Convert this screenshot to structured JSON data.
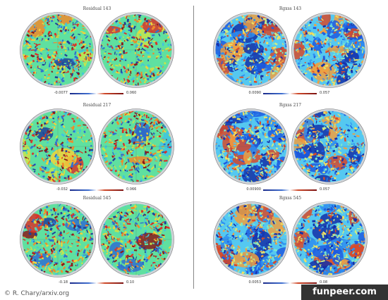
{
  "panels": [
    {
      "title": "Residual 143",
      "cb_min": "-0.0077",
      "cb_max": "0.060",
      "palette": "residual",
      "seed": 11
    },
    {
      "title": "Rgxss 143",
      "cb_min": "0.0090",
      "cb_max": "0.057",
      "palette": "rgxss",
      "seed": 23
    },
    {
      "title": "Residual 217",
      "cb_min": "-0.032",
      "cb_max": "0.066",
      "palette": "residual",
      "seed": 37
    },
    {
      "title": "Rgxss 217",
      "cb_min": "0.00900",
      "cb_max": "0.057",
      "palette": "rgxss",
      "seed": 41
    },
    {
      "title": "Residual 545",
      "cb_min": "-0.18",
      "cb_max": "0.10",
      "palette": "residual",
      "seed": 53
    },
    {
      "title": "Rgxss 545",
      "cb_min": "0.0053",
      "cb_max": "0.08",
      "palette": "rgxss",
      "seed": 67
    }
  ],
  "colors": {
    "residual": [
      "#1f3f9a",
      "#2f6fd0",
      "#41c3e0",
      "#5fe0a0",
      "#c8e34a",
      "#f2d23a",
      "#f08a2a",
      "#d8322a",
      "#8a1a1a",
      "#cfd3d8"
    ],
    "rgxss": [
      "#1430a8",
      "#1e5ce0",
      "#2f8ef0",
      "#55c8f0",
      "#7ee8c8",
      "#c8ec8a",
      "#f0e060",
      "#f0a040",
      "#d84a2a",
      "#cfd3d8"
    ]
  },
  "credit": "© R. Chary/arxiv.org",
  "brand": "funpeer.com"
}
